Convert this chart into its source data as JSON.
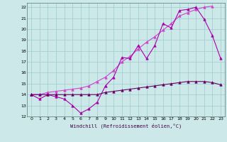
{
  "xlabel": "Windchill (Refroidissement éolien,°C)",
  "xlim": [
    -0.5,
    23.5
  ],
  "ylim": [
    12,
    22.4
  ],
  "yticks": [
    12,
    13,
    14,
    15,
    16,
    17,
    18,
    19,
    20,
    21,
    22
  ],
  "xticks": [
    0,
    1,
    2,
    3,
    4,
    5,
    6,
    7,
    8,
    9,
    10,
    11,
    12,
    13,
    14,
    15,
    16,
    17,
    18,
    19,
    20,
    21,
    22,
    23
  ],
  "bg_color": "#cce8e8",
  "grid_color": "#99cccc",
  "line_color1": "#aa00aa",
  "line_color2": "#660066",
  "line_color3": "#cc44cc",
  "series1_x": [
    0,
    1,
    2,
    3,
    4,
    5,
    6,
    7,
    8,
    9,
    10,
    11,
    12,
    13,
    14,
    15,
    16,
    17,
    18,
    19,
    20,
    21,
    22,
    23
  ],
  "series1_y": [
    14.0,
    13.6,
    14.0,
    13.8,
    13.6,
    13.0,
    12.3,
    12.7,
    13.3,
    14.8,
    15.6,
    17.4,
    17.3,
    18.5,
    17.3,
    18.5,
    20.5,
    20.1,
    21.7,
    21.8,
    22.0,
    20.9,
    19.4,
    17.3
  ],
  "series2_x": [
    0,
    1,
    2,
    3,
    4,
    5,
    6,
    7,
    8,
    9,
    10,
    11,
    12,
    13,
    14,
    15,
    16,
    17,
    18,
    19,
    20,
    21,
    22,
    23
  ],
  "series2_y": [
    14.0,
    14.0,
    14.0,
    14.0,
    14.0,
    14.0,
    14.0,
    14.0,
    14.0,
    14.2,
    14.3,
    14.4,
    14.5,
    14.6,
    14.7,
    14.8,
    14.9,
    15.0,
    15.1,
    15.2,
    15.2,
    15.2,
    15.1,
    14.9
  ],
  "series3_x": [
    0,
    1,
    2,
    3,
    4,
    5,
    6,
    7,
    8,
    9,
    10,
    11,
    12,
    13,
    14,
    15,
    16,
    17,
    18,
    19,
    20,
    21,
    22
  ],
  "series3_y": [
    14.0,
    14.0,
    14.2,
    14.3,
    14.4,
    14.5,
    14.6,
    14.8,
    15.2,
    15.6,
    16.2,
    17.0,
    17.5,
    18.2,
    18.8,
    19.3,
    19.9,
    20.5,
    21.2,
    21.5,
    21.8,
    22.0,
    22.1
  ]
}
